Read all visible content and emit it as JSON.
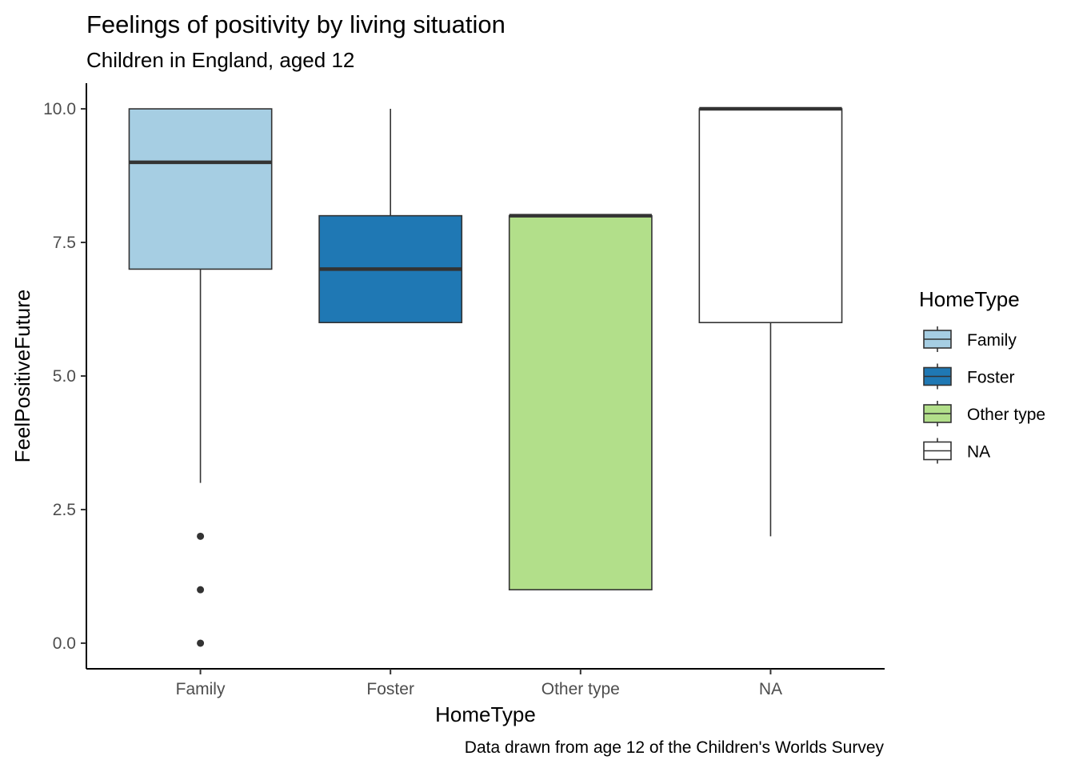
{
  "chart_data": {
    "type": "boxplot",
    "title": "Feelings of positivity by living situation",
    "subtitle": "Children in England, aged 12",
    "caption": "Data drawn from age 12 of the Children's Worlds Survey",
    "xlabel": "HomeType",
    "ylabel": "FeelPositiveFuture",
    "ylim": [
      -0.48,
      10.48
    ],
    "yticks": [
      0.0,
      2.5,
      5.0,
      7.5,
      10.0
    ],
    "ytick_labels": [
      "0.0",
      "2.5",
      "5.0",
      "7.5",
      "10.0"
    ],
    "categories": [
      "Family",
      "Foster",
      "Other type",
      "NA"
    ],
    "grid": false,
    "legend": {
      "title": "HomeType",
      "position": "right",
      "entries": [
        "Family",
        "Foster",
        "Other type",
        "NA"
      ]
    },
    "boxes": [
      {
        "category": "Family",
        "whisker_low": 3,
        "q1": 7,
        "median": 9,
        "q3": 10,
        "whisker_high": 10,
        "outliers": [
          2,
          1,
          0
        ],
        "fill": "#a6cee3"
      },
      {
        "category": "Foster",
        "whisker_low": 6,
        "q1": 6,
        "median": 7,
        "q3": 8,
        "whisker_high": 10,
        "outliers": [],
        "fill": "#1f78b4"
      },
      {
        "category": "Other type",
        "whisker_low": 1,
        "q1": 1,
        "median": 8,
        "q3": 8,
        "whisker_high": 8,
        "outliers": [],
        "fill": "#b2df8a"
      },
      {
        "category": "NA",
        "whisker_low": 2,
        "q1": 6,
        "median": 10,
        "q3": 10,
        "whisker_high": 10,
        "outliers": [],
        "fill": "#ffffff"
      }
    ]
  }
}
